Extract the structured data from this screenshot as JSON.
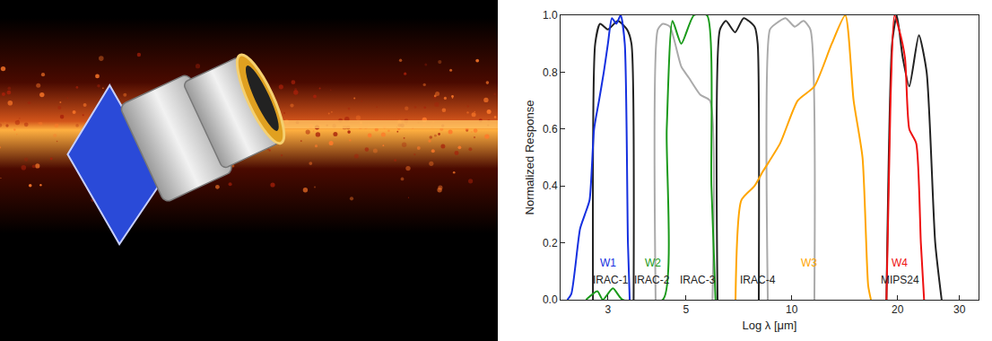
{
  "chart_data": {
    "type": "line",
    "xlabel": "Log λ [μm]",
    "ylabel": "Normalized Response",
    "log": "x",
    "grid": false,
    "xlim": [
      2.2,
      34
    ],
    "xticks": [
      3,
      5,
      10,
      20,
      30
    ],
    "ylim": [
      0,
      1
    ],
    "yticks": [
      {
        "value": 0,
        "label": "0.0"
      },
      0.2,
      0.4,
      0.6,
      0.8,
      {
        "value": 1,
        "label": "1.0"
      }
    ],
    "series": [
      {
        "name": "IRAC-1",
        "color": "#222222",
        "x": [
          2.72,
          2.76,
          2.85,
          3.0,
          3.2,
          3.4,
          3.5,
          3.55
        ],
        "values": [
          0,
          0.9,
          0.97,
          0.95,
          0.98,
          0.95,
          0.9,
          0
        ]
      },
      {
        "name": "IRAC-2",
        "color": "#aaaaaa",
        "x": [
          4.1,
          4.16,
          4.3,
          4.5,
          4.85,
          5.1,
          5.5,
          5.85,
          5.95
        ],
        "values": [
          0,
          0.95,
          0.97,
          0.96,
          0.82,
          0.78,
          0.72,
          0.7,
          0
        ]
      },
      {
        "name": "IRAC-3",
        "color": "#222222",
        "x": [
          6.15,
          6.25,
          6.5,
          6.9,
          7.3,
          7.84,
          8.0,
          8.06
        ],
        "values": [
          0,
          0.95,
          0.98,
          0.94,
          0.99,
          0.96,
          0.9,
          0
        ]
      },
      {
        "name": "IRAC-4",
        "color": "#aaaaaa",
        "x": [
          8.55,
          8.67,
          9.0,
          9.6,
          10.2,
          10.8,
          11.3,
          11.6
        ],
        "values": [
          0,
          0.95,
          0.97,
          0.99,
          0.96,
          0.98,
          0.95,
          0
        ]
      },
      {
        "name": "MIPS24",
        "color": "#222222",
        "x": [
          18.6,
          19.3,
          19.9,
          20.7,
          21.6,
          23.0,
          24.2,
          25.6,
          26.7
        ],
        "values": [
          0,
          0.9,
          1.0,
          0.85,
          0.75,
          0.93,
          0.8,
          0.2,
          0
        ]
      },
      {
        "name": "W1",
        "color": "#1530e0",
        "x": [
          2.3,
          2.36,
          2.5,
          2.58,
          2.66,
          2.74,
          2.83,
          2.92,
          3.0,
          3.08,
          3.17,
          3.26,
          3.35,
          3.42,
          3.46
        ],
        "values": [
          0,
          0.02,
          0.25,
          0.3,
          0.35,
          0.6,
          0.7,
          0.8,
          0.9,
          0.99,
          0.97,
          1.0,
          0.9,
          0.2,
          0
        ]
      },
      {
        "name": "W2",
        "color": "#1a9a1a",
        "x": [
          2.6,
          2.8,
          2.9,
          3.1,
          3.3,
          4.3,
          4.41,
          4.58,
          4.85,
          5.27,
          5.74,
          5.91,
          6.07
        ],
        "values": [
          0,
          0.03,
          0,
          0.04,
          0,
          0,
          0.6,
          0.98,
          0.9,
          1.0,
          1.0,
          0.4,
          0
        ]
      },
      {
        "name": "W3",
        "color": "#ffa500",
        "x": [
          6.92,
          7.19,
          7.84,
          8.27,
          9.27,
          10.4,
          11.6,
          13.0,
          14.2,
          15.0,
          15.9,
          16.5,
          16.8
        ],
        "values": [
          0,
          0.35,
          0.4,
          0.45,
          0.55,
          0.7,
          0.75,
          0.9,
          1.0,
          0.7,
          0.5,
          0.05,
          0
        ]
      },
      {
        "name": "W4",
        "color": "#ee1111",
        "x": [
          18.6,
          19.1,
          19.6,
          20.2,
          21.0,
          21.6,
          22.6,
          23.3,
          23.8
        ],
        "values": [
          0,
          0.7,
          1.0,
          0.95,
          0.85,
          0.6,
          0.55,
          0.2,
          0
        ]
      }
    ],
    "annotations": [
      {
        "text": "W1",
        "x": 3.0,
        "y": 0.13,
        "color": "#1530e0"
      },
      {
        "text": "IRAC-1",
        "x": 3.05,
        "y": 0.07,
        "color": "#222222"
      },
      {
        "text": "W2",
        "x": 4.02,
        "y": 0.13,
        "color": "#1a9a1a"
      },
      {
        "text": "IRAC-2",
        "x": 4.0,
        "y": 0.07,
        "color": "#222222"
      },
      {
        "text": "IRAC-3",
        "x": 5.4,
        "y": 0.07,
        "color": "#222222"
      },
      {
        "text": "IRAC-4",
        "x": 8.0,
        "y": 0.07,
        "color": "#222222"
      },
      {
        "text": "W3",
        "x": 11.2,
        "y": 0.13,
        "color": "#ffa500"
      },
      {
        "text": "W4",
        "x": 20.3,
        "y": 0.13,
        "color": "#ee1111"
      },
      {
        "text": "MIPS24",
        "x": 20.3,
        "y": 0.07,
        "color": "#222222"
      }
    ]
  }
}
